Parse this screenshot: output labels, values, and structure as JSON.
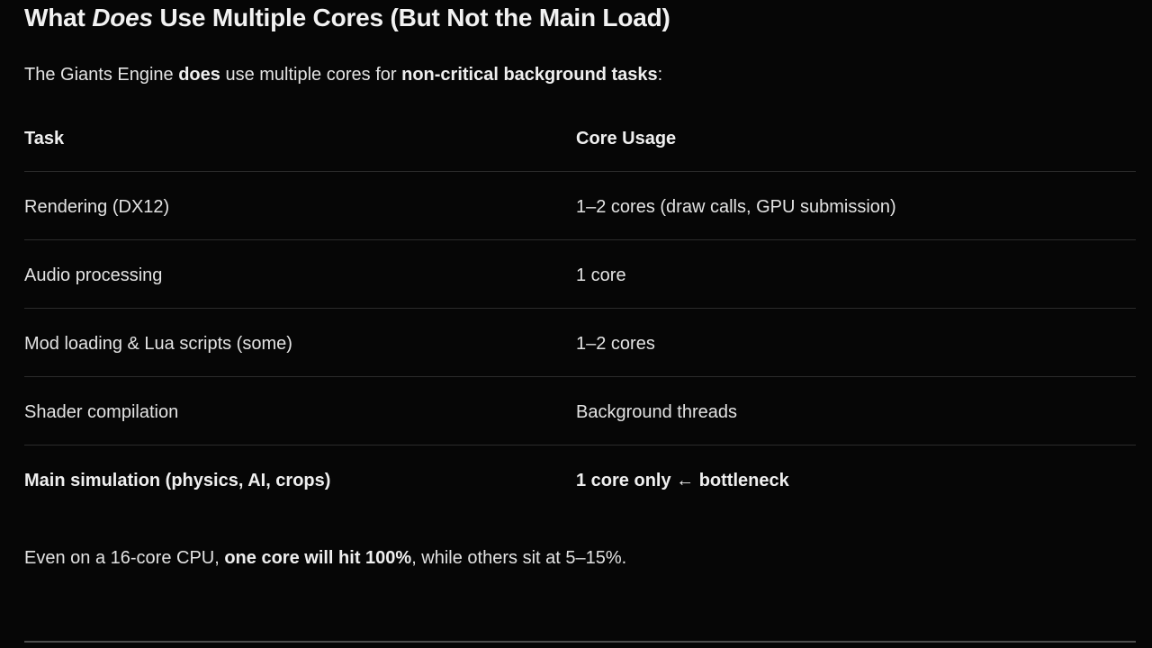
{
  "page": {
    "background_color": "#060606",
    "text_color": "#e3e3e3",
    "heading_color": "#f2f2f2",
    "table_divider_color": "#2b2b2b",
    "bottom_rule_color": "#4d4d4d"
  },
  "heading": {
    "segments": [
      {
        "text": "What "
      },
      {
        "text": "Does",
        "italic": true
      },
      {
        "text": " Use Multiple Cores (But Not the Main Load)"
      }
    ]
  },
  "intro": {
    "segments": [
      {
        "text": "The Giants Engine "
      },
      {
        "text": "does",
        "bold": true
      },
      {
        "text": " use multiple cores for "
      },
      {
        "text": "non-critical background tasks",
        "bold": true
      },
      {
        "text": ":"
      }
    ]
  },
  "table": {
    "columns": [
      "Task",
      "Core Usage"
    ],
    "rows": [
      {
        "task": [
          {
            "text": "Rendering (DX12)"
          }
        ],
        "usage": [
          {
            "text": "1–2 cores (draw calls, GPU submission)"
          }
        ]
      },
      {
        "task": [
          {
            "text": "Audio processing"
          }
        ],
        "usage": [
          {
            "text": "1 core"
          }
        ]
      },
      {
        "task": [
          {
            "text": "Mod loading & Lua scripts (some)"
          }
        ],
        "usage": [
          {
            "text": "1–2 cores"
          }
        ]
      },
      {
        "task": [
          {
            "text": "Shader compilation"
          }
        ],
        "usage": [
          {
            "text": "Background threads"
          }
        ]
      },
      {
        "task": [
          {
            "text": "Main simulation (physics, AI, crops)",
            "bold": true
          }
        ],
        "usage": [
          {
            "text": "1 core only ← bottleneck",
            "bold": true
          }
        ]
      }
    ]
  },
  "outro": {
    "segments": [
      {
        "text": "Even on a 16-core CPU, "
      },
      {
        "text": "one core will hit 100%",
        "bold": true
      },
      {
        "text": ", while others sit at 5–15%."
      }
    ]
  }
}
